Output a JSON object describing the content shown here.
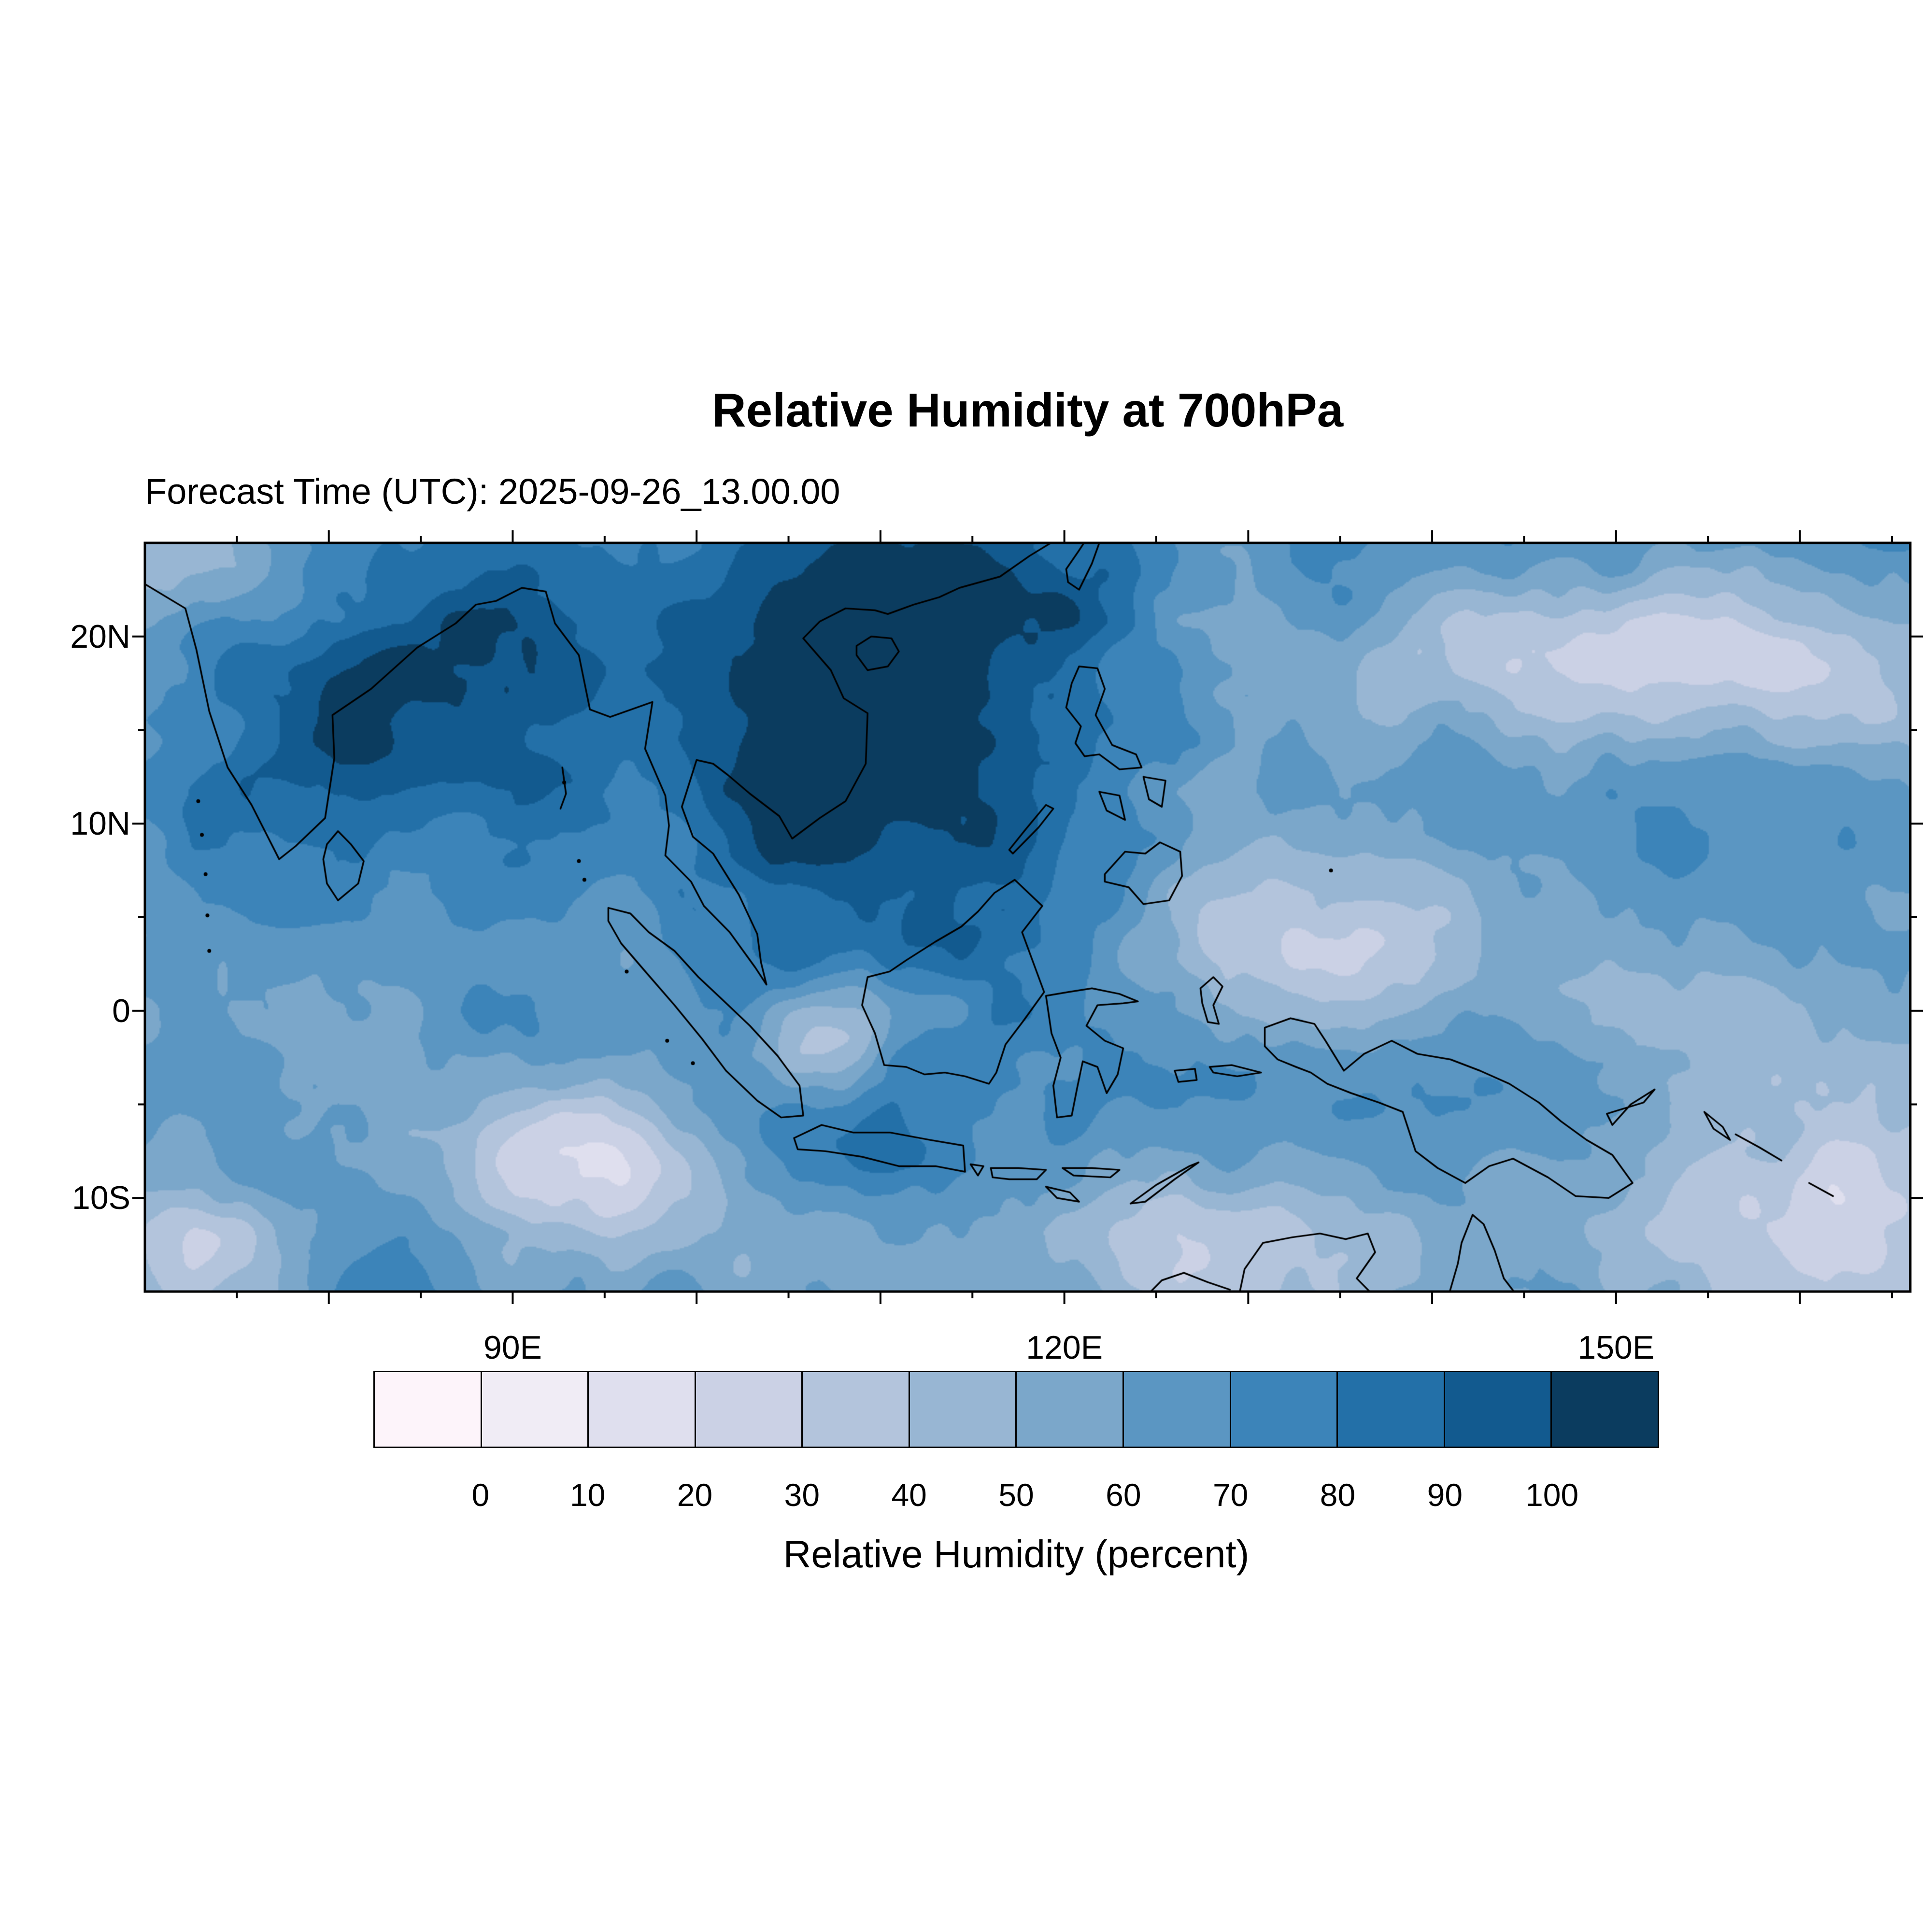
{
  "title": "Relative Humidity at 700hPa",
  "chart_data": {
    "type": "heatmap",
    "title": "Relative Humidity at 700hPa",
    "subtitle": "Forecast Time (UTC): 2025-09-26_13.00.00",
    "variable": "Relative Humidity",
    "pressure_level": "700hPa",
    "units": "percent",
    "colorbar_label": "Relative Humidity (percent)",
    "levels": [
      0,
      10,
      20,
      30,
      40,
      50,
      60,
      70,
      80,
      90,
      100
    ],
    "colorbar_tick_labels": [
      "0",
      "10",
      "20",
      "30",
      "40",
      "50",
      "60",
      "70",
      "80",
      "90",
      "100"
    ],
    "palette": [
      "#fdf4fa",
      "#f0ecf5",
      "#dfdfee",
      "#cbd1e5",
      "#b3c4dc",
      "#98b6d3",
      "#7ba7ca",
      "#5b96c2",
      "#3c84b9",
      "#2370a8",
      "#125a8f",
      "#0b3c5f"
    ],
    "grid": false,
    "legend_position": "bottom",
    "x_axis": {
      "lon_min": 70,
      "lon_max": 166,
      "ticks": [
        {
          "label": "90E",
          "lon": 90
        },
        {
          "label": "120E",
          "lon": 120
        },
        {
          "label": "150E",
          "lon": 150
        }
      ]
    },
    "y_axis": {
      "lat_min": -15,
      "lat_max": 25,
      "ticks": [
        {
          "label": "20N",
          "lat": 20
        },
        {
          "label": "10N",
          "lat": 10
        },
        {
          "label": "0",
          "lat": 0
        },
        {
          "label": "10S",
          "lat": -10
        }
      ]
    },
    "field_model": {
      "base": 66,
      "octaves": [
        [
          22,
          16
        ],
        [
          7.5,
          10
        ],
        [
          3,
          6
        ],
        [
          1.3,
          3
        ]
      ],
      "bumps": [
        [
          99,
          16,
          16,
          7,
          26
        ],
        [
          84,
          21,
          9,
          4.5,
          18
        ],
        [
          79,
          13,
          5.5,
          5,
          20
        ],
        [
          117,
          13,
          9,
          7,
          14
        ],
        [
          141,
          -5.5,
          7.5,
          3.5,
          22
        ],
        [
          128,
          -5,
          6,
          3.5,
          12
        ],
        [
          157,
          -7,
          5,
          3,
          12
        ],
        [
          151,
          26,
          12,
          3,
          18
        ],
        [
          150,
          9,
          10,
          5,
          8
        ],
        [
          93,
          -2,
          6,
          3,
          10
        ],
        [
          110,
          -7.5,
          3,
          1.5,
          12
        ],
        [
          113,
          23,
          6,
          3,
          14
        ],
        [
          160,
          -12,
          9,
          5.5,
          -46
        ],
        [
          136.5,
          4,
          6.5,
          3.5,
          -28
        ],
        [
          152,
          18.5,
          11,
          3,
          -38
        ],
        [
          94,
          -8,
          5,
          3,
          -45
        ],
        [
          72,
          -13.5,
          5,
          3.5,
          -38
        ],
        [
          107,
          -1.5,
          3,
          2,
          -40
        ],
        [
          72,
          24.5,
          3.5,
          2.5,
          -28
        ],
        [
          121,
          -12.5,
          10,
          3.5,
          -22
        ],
        [
          111,
          0.8,
          2.5,
          1.5,
          -18
        ],
        [
          100,
          -13,
          6,
          3,
          -15
        ],
        [
          76,
          21.5,
          3,
          2,
          -12
        ]
      ]
    },
    "geo": {
      "coastlines": [
        [
          70,
          22.8,
          72.2,
          21.5,
          72.8,
          19.3,
          73.5,
          16,
          74.5,
          13,
          75.8,
          11,
          77.3,
          8.1,
          78.2,
          8.8,
          79.8,
          10.3,
          80.3,
          13.5,
          80.2,
          15.8,
          82.3,
          17.2,
          84.8,
          19.4,
          86.9,
          20.7,
          88,
          21.7,
          89.1,
          21.9,
          90.5,
          22.6,
          91.8,
          22.4,
          92.3,
          20.7,
          93.6,
          19,
          94.2,
          16.1,
          95.3,
          15.7,
          97.6,
          16.5,
          97.2,
          14,
          98.3,
          11.5,
          98.5,
          9.9,
          98.3,
          8.3,
          99.7,
          6.9,
          100.4,
          5.6,
          101.8,
          4.2,
          103.2,
          2.3,
          103.8,
          1.4,
          103.5,
          2.6,
          103.3,
          4.1,
          102.3,
          6.2,
          100.9,
          8.4,
          99.8,
          9.3,
          99.2,
          10.9,
          100,
          13.4,
          100.9,
          13.2,
          101.7,
          12.6,
          102.9,
          11.6,
          104.5,
          10.4,
          105.2,
          9.2,
          106.7,
          10.3,
          108.1,
          11.2,
          109.2,
          13.2,
          109.3,
          15.9,
          108,
          16.7,
          107.3,
          18.2,
          105.8,
          19.9,
          106.7,
          20.8,
          108.1,
          21.5,
          109.7,
          21.4,
          110.4,
          21.2,
          111.8,
          21.7,
          113.2,
          22.1,
          114.3,
          22.6,
          116.5,
          23.2,
          118.1,
          24.3,
          119.6,
          25.2
        ],
        [
          108.7,
          19.5,
          109.5,
          20,
          110.6,
          19.9,
          111,
          19.2,
          110.4,
          18.4,
          109.3,
          18.2,
          108.7,
          19,
          108.7,
          19.5
        ],
        [
          120.1,
          23.6,
          120.8,
          24.6,
          121.2,
          25.2,
          121.9,
          25,
          121.5,
          23.9,
          120.8,
          22.5,
          120.2,
          22.9,
          120.1,
          23.6
        ],
        [
          79.9,
          8.9,
          80.5,
          9.6,
          81.2,
          8.9,
          81.9,
          8,
          81.6,
          6.8,
          80.5,
          5.9,
          79.9,
          6.8,
          79.7,
          8.1,
          79.9,
          8.9
        ],
        [
          95.2,
          5.5,
          96.4,
          5.2,
          97.4,
          4.2,
          98.8,
          3.2,
          100.1,
          1.8,
          101.4,
          0.6,
          102.9,
          -0.8,
          104.4,
          -2.4,
          105.6,
          -4,
          105.8,
          -5.6,
          104.6,
          -5.7,
          103.3,
          -4.8,
          101.6,
          -3.2,
          100.3,
          -1.5,
          98.8,
          0.3,
          97.3,
          2,
          95.9,
          3.6,
          95.2,
          4.8,
          95.2,
          5.5
        ],
        [
          105.3,
          -6.8,
          106.8,
          -6.1,
          108.5,
          -6.5,
          110.5,
          -6.5,
          112.7,
          -6.9,
          114.5,
          -7.2,
          114.6,
          -8.6,
          113,
          -8.3,
          111,
          -8.3,
          109,
          -7.8,
          107,
          -7.5,
          105.5,
          -7.4,
          105.3,
          -6.8
        ],
        [
          109.7,
          -1.2,
          109,
          0.3,
          109.3,
          1.8,
          110.5,
          2.1,
          111.4,
          2.7,
          113,
          3.7,
          114.4,
          4.5,
          115.3,
          5.3,
          116.2,
          6.3,
          117.3,
          7,
          118.8,
          5.6,
          117.7,
          4.2,
          118.3,
          2.6,
          118.9,
          1,
          117.8,
          -0.5,
          116.8,
          -1.8,
          116.3,
          -3.3,
          115.9,
          -3.9,
          114.6,
          -3.5,
          113.5,
          -3.3,
          112.4,
          -3.4,
          111.4,
          -3,
          110.2,
          -2.9,
          109.7,
          -1.2
        ],
        [
          119,
          0.8,
          120.2,
          1,
          121.5,
          1.2,
          123,
          0.9,
          124,
          0.5,
          123.2,
          0.4,
          121.8,
          0.3,
          121.2,
          -0.8,
          122.2,
          -1.6,
          123.2,
          -2,
          122.9,
          -3.4,
          122.3,
          -4.4,
          121.8,
          -3,
          121,
          -2.7,
          120.7,
          -4.1,
          120.4,
          -5.6,
          119.6,
          -5.7,
          119.4,
          -4,
          119.8,
          -2.5,
          119.3,
          -1.2,
          119,
          0.8
        ],
        [
          130.9,
          -0.9,
          132.3,
          -0.4,
          133.6,
          -0.7,
          134.2,
          -1.6,
          135.2,
          -3.2,
          136.3,
          -2.3,
          137.8,
          -1.6,
          139.2,
          -2.3,
          141,
          -2.6,
          142.6,
          -3.2,
          144.2,
          -3.9,
          145.8,
          -4.9,
          147,
          -5.9,
          148.4,
          -6.9,
          149.8,
          -7.7,
          150.9,
          -9.2,
          149.6,
          -10,
          147.8,
          -9.9,
          146.3,
          -8.9,
          144.4,
          -7.9,
          143.1,
          -8.3,
          141.8,
          -9.2,
          140.3,
          -8.4,
          139.1,
          -7.5,
          138.7,
          -6.3,
          138.4,
          -5.4,
          137.1,
          -4.9,
          135.6,
          -4.4,
          134.3,
          -3.9,
          133.4,
          -3.3,
          132.6,
          -3,
          131.6,
          -2.6,
          130.9,
          -1.9,
          130.9,
          -0.9
        ],
        [
          120.1,
          16.2,
          120.4,
          17.5,
          120.8,
          18.4,
          121.8,
          18.3,
          122.2,
          17.2,
          121.7,
          15.8,
          122.6,
          14.2,
          123.9,
          13.7,
          124.2,
          13,
          123,
          12.9,
          121.9,
          13.7,
          121.1,
          13.6,
          120.6,
          14.3,
          120.9,
          15.2,
          120.1,
          16.2
        ],
        [
          122.2,
          7.3,
          123.3,
          8.5,
          124.4,
          8.4,
          125.2,
          9,
          126.3,
          8.5,
          126.4,
          7.2,
          125.7,
          5.9,
          124.3,
          5.7,
          123.5,
          6.6,
          122.2,
          6.9,
          122.2,
          7.3
        ],
        [
          124.3,
          12.5,
          125.5,
          12.3,
          125.3,
          10.9,
          124.6,
          11.3,
          124.3,
          12.5
        ],
        [
          121.9,
          11.7,
          123,
          11.5,
          123.3,
          10.2,
          122.3,
          10.7,
          121.9,
          11.7
        ],
        [
          117.2,
          8.4,
          118.6,
          9.8,
          119.4,
          10.8,
          119,
          11,
          117.9,
          9.7,
          117,
          8.6,
          117.2,
          8.4
        ],
        [
          127.4,
          1.2,
          128.1,
          1.8,
          128.6,
          1.3,
          128.1,
          0.3,
          128.4,
          -0.7,
          127.8,
          -0.6,
          127.5,
          0.4,
          127.4,
          1.2
        ],
        [
          127.9,
          -3,
          129.1,
          -2.9,
          130.7,
          -3.3,
          129.4,
          -3.5,
          128.1,
          -3.3,
          127.9,
          -3
        ],
        [
          126,
          -3.2,
          127.1,
          -3.1,
          127.2,
          -3.7,
          126.2,
          -3.8,
          126,
          -3.2
        ],
        [
          114.9,
          -8.2,
          115.6,
          -8.3,
          115.3,
          -8.8,
          114.9,
          -8.2
        ],
        [
          116,
          -8.4,
          117.5,
          -8.4,
          119,
          -8.5,
          118.5,
          -9,
          117,
          -9,
          116.1,
          -8.9,
          116,
          -8.4
        ],
        [
          119.9,
          -8.4,
          121.5,
          -8.4,
          123,
          -8.5,
          122.5,
          -8.9,
          120.5,
          -8.8,
          119.9,
          -8.4
        ],
        [
          119,
          -9.4,
          120.3,
          -9.7,
          120.8,
          -10.2,
          119.6,
          -10,
          119,
          -9.4
        ],
        [
          123.6,
          -10.3,
          125,
          -9.3,
          126.8,
          -8.3,
          127.3,
          -8.1,
          126,
          -9,
          124.4,
          -10.2,
          123.6,
          -10.3
        ],
        [
          129.5,
          -15.2,
          129.8,
          -13.8,
          130.8,
          -12.4,
          132.4,
          -12.1,
          133.9,
          -11.9,
          135.3,
          -12.2,
          136.5,
          -11.9,
          136.9,
          -12.9,
          135.9,
          -14.3,
          136.8,
          -15.2
        ],
        [
          140.9,
          -15.2,
          141.4,
          -13.5,
          141.6,
          -12.4,
          142.2,
          -10.9,
          142.8,
          -11.4,
          143.4,
          -12.8,
          143.9,
          -14.3,
          144.6,
          -15.2
        ],
        [
          124.5,
          -15.2,
          125.3,
          -14.4,
          126.5,
          -14,
          127.8,
          -14.5,
          129,
          -14.9
        ],
        [
          149.5,
          -5.5,
          151.5,
          -4.9,
          152.1,
          -4.2,
          150.8,
          -5,
          149.8,
          -6.1,
          149.5,
          -5.5
        ],
        [
          154.8,
          -5.4,
          155.8,
          -6.2,
          156.2,
          -6.9,
          155.3,
          -6.3,
          154.8,
          -5.4
        ],
        [
          156.5,
          -6.6,
          157.8,
          -7.3,
          159,
          -8
        ],
        [
          160.5,
          -9.2,
          161.8,
          -9.9
        ],
        [
          92.7,
          13,
          92.9,
          11.6,
          92.6,
          10.8
        ]
      ],
      "island_dots": [
        [
          72.9,
          11.2
        ],
        [
          73.1,
          9.4
        ],
        [
          73.3,
          7.3
        ],
        [
          73.4,
          5.1
        ],
        [
          73.5,
          3.2
        ],
        [
          93.6,
          8.0
        ],
        [
          93.9,
          7.0
        ],
        [
          92.8,
          12.2
        ],
        [
          96.2,
          2.1
        ],
        [
          98.4,
          -1.6
        ],
        [
          99.8,
          -2.8
        ],
        [
          134.5,
          7.5
        ]
      ]
    }
  }
}
